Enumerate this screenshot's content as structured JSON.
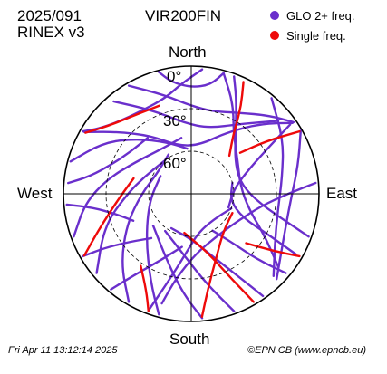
{
  "header": {
    "date_code": "2025/091",
    "rinex": "RINEX v3",
    "station": "VIR200FIN"
  },
  "legend": [
    {
      "label": "GLO 2+ freq.",
      "color": "#6a2fcc"
    },
    {
      "label": "Single freq.",
      "color": "#ee0a0a"
    }
  ],
  "footer": {
    "timestamp": "Fri Apr 11 13:12:14 2025",
    "credit": "©EPN CB (www.epncb.eu)"
  },
  "chart_data": {
    "type": "polar-skyplot",
    "cardinals": {
      "north": "North",
      "south": "South",
      "east": "East",
      "west": "West"
    },
    "elevation_labels": [
      "0°",
      "30°",
      "60°"
    ],
    "elevation_rings": [
      30,
      60
    ],
    "series": [
      {
        "name": "GLO 2+ freq.",
        "color": "#6a2fcc",
        "tracks": [
          [
            [
              330,
              2
            ],
            [
              345,
              18
            ],
            [
              0,
              28
            ],
            [
              15,
              30
            ],
            [
              30,
              24
            ],
            [
              45,
              12
            ],
            [
              55,
              2
            ]
          ],
          [
            [
              320,
              5
            ],
            [
              335,
              25
            ],
            [
              355,
              40
            ],
            [
              15,
              42
            ],
            [
              35,
              30
            ],
            [
              50,
              10
            ]
          ],
          [
            [
              300,
              3
            ],
            [
              310,
              22
            ],
            [
              325,
              40
            ],
            [
              345,
              55
            ],
            [
              10,
              55
            ],
            [
              30,
              40
            ],
            [
              45,
              20
            ],
            [
              55,
              3
            ]
          ],
          [
            [
              285,
              2
            ],
            [
              300,
              18
            ],
            [
              315,
              35
            ],
            [
              335,
              50
            ],
            [
              355,
              58
            ]
          ],
          [
            [
              15,
              2
            ],
            [
              25,
              20
            ],
            [
              35,
              38
            ],
            [
              55,
              50
            ],
            [
              80,
              55
            ],
            [
              105,
              48
            ],
            [
              120,
              30
            ],
            [
              130,
              10
            ]
          ],
          [
            [
              40,
              2
            ],
            [
              60,
              15
            ],
            [
              80,
              25
            ],
            [
              100,
              28
            ],
            [
              120,
              22
            ],
            [
              135,
              8
            ]
          ],
          [
            [
              60,
              1
            ],
            [
              75,
              12
            ],
            [
              95,
              20
            ],
            [
              115,
              18
            ],
            [
              135,
              5
            ]
          ],
          [
            [
              250,
              2
            ],
            [
              265,
              15
            ],
            [
              280,
              30
            ],
            [
              300,
              45
            ],
            [
              325,
              52
            ],
            [
              350,
              50
            ]
          ],
          [
            [
              230,
              3
            ],
            [
              250,
              25
            ],
            [
              270,
              45
            ],
            [
              290,
              55
            ],
            [
              320,
              60
            ]
          ],
          [
            [
              210,
              2
            ],
            [
              225,
              20
            ],
            [
              245,
              40
            ],
            [
              270,
              55
            ],
            [
              300,
              62
            ],
            [
              330,
              58
            ]
          ],
          [
            [
              195,
              2
            ],
            [
              205,
              22
            ],
            [
              225,
              45
            ],
            [
              260,
              60
            ],
            [
              300,
              65
            ]
          ],
          [
            [
              175,
              2
            ],
            [
              185,
              20
            ],
            [
              200,
              40
            ],
            [
              230,
              55
            ]
          ],
          [
            [
              160,
              2
            ],
            [
              170,
              25
            ],
            [
              185,
              45
            ],
            [
              215,
              58
            ]
          ],
          [
            [
              145,
              2
            ],
            [
              150,
              22
            ],
            [
              160,
              42
            ],
            [
              180,
              58
            ],
            [
              210,
              62
            ]
          ],
          [
            [
              130,
              3
            ],
            [
              135,
              25
            ],
            [
              140,
              45
            ],
            [
              150,
              60
            ]
          ],
          [
            [
              120,
              5
            ],
            [
              118,
              28
            ],
            [
              115,
              50
            ],
            [
              100,
              62
            ],
            [
              75,
              60
            ]
          ],
          [
            [
              110,
              2
            ],
            [
              105,
              25
            ],
            [
              95,
              45
            ],
            [
              75,
              55
            ],
            [
              50,
              50
            ],
            [
              35,
              35
            ],
            [
              25,
              15
            ],
            [
              20,
              2
            ]
          ],
          [
            [
              200,
              3
            ],
            [
              195,
              25
            ],
            [
              185,
              48
            ],
            [
              170,
              62
            ],
            [
              140,
              66
            ],
            [
              110,
              60
            ]
          ],
          [
            [
              220,
              2
            ],
            [
              215,
              20
            ],
            [
              205,
              38
            ],
            [
              190,
              52
            ]
          ],
          [
            [
              240,
              2
            ],
            [
              238,
              18
            ],
            [
              232,
              35
            ],
            [
              222,
              48
            ]
          ],
          [
            [
              265,
              2
            ],
            [
              262,
              20
            ],
            [
              255,
              35
            ],
            [
              245,
              45
            ]
          ],
          [
            [
              275,
              3
            ],
            [
              280,
              18
            ],
            [
              290,
              30
            ],
            [
              305,
              38
            ],
            [
              322,
              40
            ]
          ],
          [
            [
              300,
              2
            ],
            [
              305,
              10
            ],
            [
              315,
              18
            ],
            [
              330,
              22
            ],
            [
              345,
              20
            ],
            [
              355,
              12
            ],
            [
              5,
              2
            ]
          ],
          [
            [
              345,
              1
            ],
            [
              350,
              10
            ],
            [
              0,
              15
            ],
            [
              10,
              12
            ],
            [
              15,
              2
            ]
          ],
          [
            [
              55,
              5
            ],
            [
              60,
              30
            ],
            [
              70,
              50
            ],
            [
              85,
              60
            ],
            [
              110,
              62
            ]
          ],
          [
            [
              85,
              2
            ],
            [
              90,
              22
            ],
            [
              100,
              40
            ],
            [
              120,
              52
            ],
            [
              150,
              55
            ],
            [
              175,
              48
            ],
            [
              190,
              30
            ],
            [
              195,
              10
            ]
          ]
        ]
      },
      {
        "name": "Single freq.",
        "color": "#ee0a0a",
        "tracks": [
          [
            [
              25,
              3
            ],
            [
              30,
              20
            ],
            [
              35,
              38
            ],
            [
              45,
              52
            ]
          ],
          [
            [
              60,
              2
            ],
            [
              55,
              25
            ],
            [
              50,
              45
            ]
          ],
          [
            [
              150,
              2
            ],
            [
              155,
              25
            ],
            [
              165,
              48
            ],
            [
              190,
              62
            ]
          ],
          [
            [
              240,
              3
            ],
            [
              250,
              22
            ],
            [
              265,
              38
            ],
            [
              285,
              48
            ]
          ],
          [
            [
              300,
              4
            ],
            [
              310,
              15
            ],
            [
              325,
              22
            ],
            [
              340,
              24
            ]
          ],
          [
            [
              175,
              3
            ],
            [
              170,
              22
            ],
            [
              160,
              40
            ],
            [
              140,
              55
            ],
            [
              115,
              58
            ]
          ],
          [
            [
              120,
              2
            ],
            [
              125,
              20
            ],
            [
              132,
              38
            ]
          ],
          [
            [
              200,
              2
            ],
            [
              205,
              15
            ],
            [
              215,
              28
            ]
          ]
        ]
      }
    ]
  }
}
